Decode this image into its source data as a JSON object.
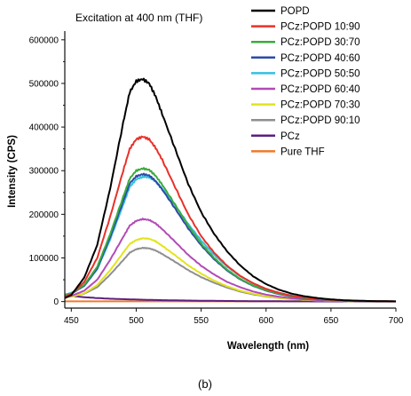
{
  "chart_data": {
    "type": "line",
    "annotation": "Excitation at 400 nm (THF)",
    "xlabel": "Wavelength (nm)",
    "ylabel": "Intensity (CPS)",
    "xlim": [
      445,
      700
    ],
    "ylim": [
      -15000,
      620000
    ],
    "x_ticks": [
      450,
      500,
      550,
      600,
      650,
      700
    ],
    "x_tick_labels": [
      "450",
      "500",
      "550",
      "600",
      "650",
      "700"
    ],
    "y_ticks": [
      0,
      100000,
      200000,
      300000,
      400000,
      500000,
      600000
    ],
    "y_tick_labels": [
      "0",
      "100000",
      "200000",
      "300000",
      "400000",
      "500000",
      "600000"
    ],
    "grid": false,
    "legend_position": "top-right",
    "x": [
      445,
      450,
      460,
      470,
      480,
      490,
      495,
      500,
      505,
      510,
      515,
      520,
      530,
      540,
      550,
      560,
      570,
      580,
      590,
      600,
      610,
      620,
      630,
      640,
      650,
      660,
      670,
      680,
      690,
      700
    ],
    "series": [
      {
        "name": "POPD",
        "color": "#000000",
        "values": [
          8000,
          15000,
          55000,
          130000,
          260000,
          410000,
          480000,
          505000,
          510000,
          500000,
          470000,
          430000,
          350000,
          270000,
          205000,
          155000,
          115000,
          83000,
          58000,
          40000,
          27000,
          18000,
          12000,
          8000,
          5000,
          3000,
          2000,
          1200,
          700,
          400
        ]
      },
      {
        "name": "PCz:POPD 10:90",
        "color": "#e8312a",
        "values": [
          12000,
          17000,
          45000,
          100000,
          195000,
          300000,
          350000,
          372000,
          378000,
          372000,
          352000,
          325000,
          262000,
          200000,
          150000,
          112000,
          82000,
          59000,
          42000,
          29000,
          20000,
          13000,
          9000,
          6000,
          4000,
          2500,
          1500,
          1000,
          600,
          300
        ]
      },
      {
        "name": "PCz:POPD 30:70",
        "color": "#3eaa3e",
        "values": [
          14000,
          19000,
          38000,
          80000,
          155000,
          240000,
          282000,
          300000,
          305000,
          302000,
          288000,
          268000,
          222000,
          174000,
          133000,
          100000,
          73000,
          52000,
          37000,
          26000,
          18000,
          12000,
          8000,
          5500,
          3500,
          2200,
          1400,
          900,
          500,
          300
        ]
      },
      {
        "name": "PCz:POPD 40:60",
        "color": "#2b4ba8",
        "values": [
          14000,
          18000,
          36000,
          76000,
          148000,
          230000,
          271000,
          287000,
          292000,
          289000,
          276000,
          257000,
          213000,
          168000,
          129000,
          97000,
          71000,
          51000,
          36000,
          25000,
          17000,
          11500,
          7500,
          5000,
          3300,
          2100,
          1300,
          800,
          500,
          300
        ]
      },
      {
        "name": "PCz:POPD 50:50",
        "color": "#35bfe0",
        "values": [
          16000,
          20000,
          36000,
          74000,
          143000,
          222000,
          263000,
          280000,
          286000,
          285000,
          275000,
          259000,
          220000,
          178000,
          140000,
          107000,
          80000,
          58000,
          42000,
          29000,
          20000,
          13500,
          9000,
          6000,
          4000,
          2600,
          1600,
          1000,
          600,
          300
        ]
      },
      {
        "name": "PCz:POPD 60:40",
        "color": "#b24bb6",
        "values": [
          10000,
          13000,
          25000,
          50000,
          96000,
          148000,
          174000,
          185000,
          189000,
          187000,
          179000,
          166000,
          137000,
          107000,
          82000,
          62000,
          45000,
          33000,
          23000,
          16000,
          11000,
          7500,
          5000,
          3300,
          2200,
          1400,
          900,
          600,
          400,
          200
        ]
      },
      {
        "name": "PCz:POPD 70:30",
        "color": "#e3e31d",
        "values": [
          9000,
          11000,
          19000,
          38000,
          72000,
          112000,
          132000,
          141000,
          145000,
          144000,
          138000,
          128000,
          106000,
          83000,
          64000,
          48000,
          35000,
          25000,
          18000,
          12500,
          8500,
          5800,
          3900,
          2600,
          1700,
          1100,
          700,
          500,
          300,
          200
        ]
      },
      {
        "name": "PCz:POPD 90:10",
        "color": "#8f8f8f",
        "values": [
          11000,
          12000,
          18000,
          33000,
          62000,
          95000,
          112000,
          120000,
          123000,
          122000,
          117000,
          109000,
          91000,
          72000,
          56000,
          43000,
          32000,
          23000,
          16500,
          11500,
          8000,
          5500,
          3700,
          2500,
          1700,
          1100,
          700,
          500,
          300,
          200
        ]
      },
      {
        "name": "PCz",
        "color": "#5c1f80",
        "values": [
          15000,
          13000,
          10000,
          8000,
          6500,
          5500,
          5000,
          4600,
          4200,
          3800,
          3500,
          3200,
          2700,
          2300,
          1900,
          1600,
          1300,
          1100,
          900,
          700,
          600,
          500,
          400,
          300,
          250,
          200,
          150,
          100,
          80,
          60
        ]
      },
      {
        "name": "Pure THF",
        "color": "#f07a2a",
        "values": [
          500,
          500,
          500,
          500,
          500,
          500,
          500,
          500,
          500,
          500,
          500,
          500,
          500,
          500,
          500,
          500,
          500,
          500,
          500,
          500,
          500,
          500,
          500,
          500,
          500,
          500,
          500,
          500,
          500,
          500
        ]
      }
    ]
  },
  "caption": "(b)"
}
